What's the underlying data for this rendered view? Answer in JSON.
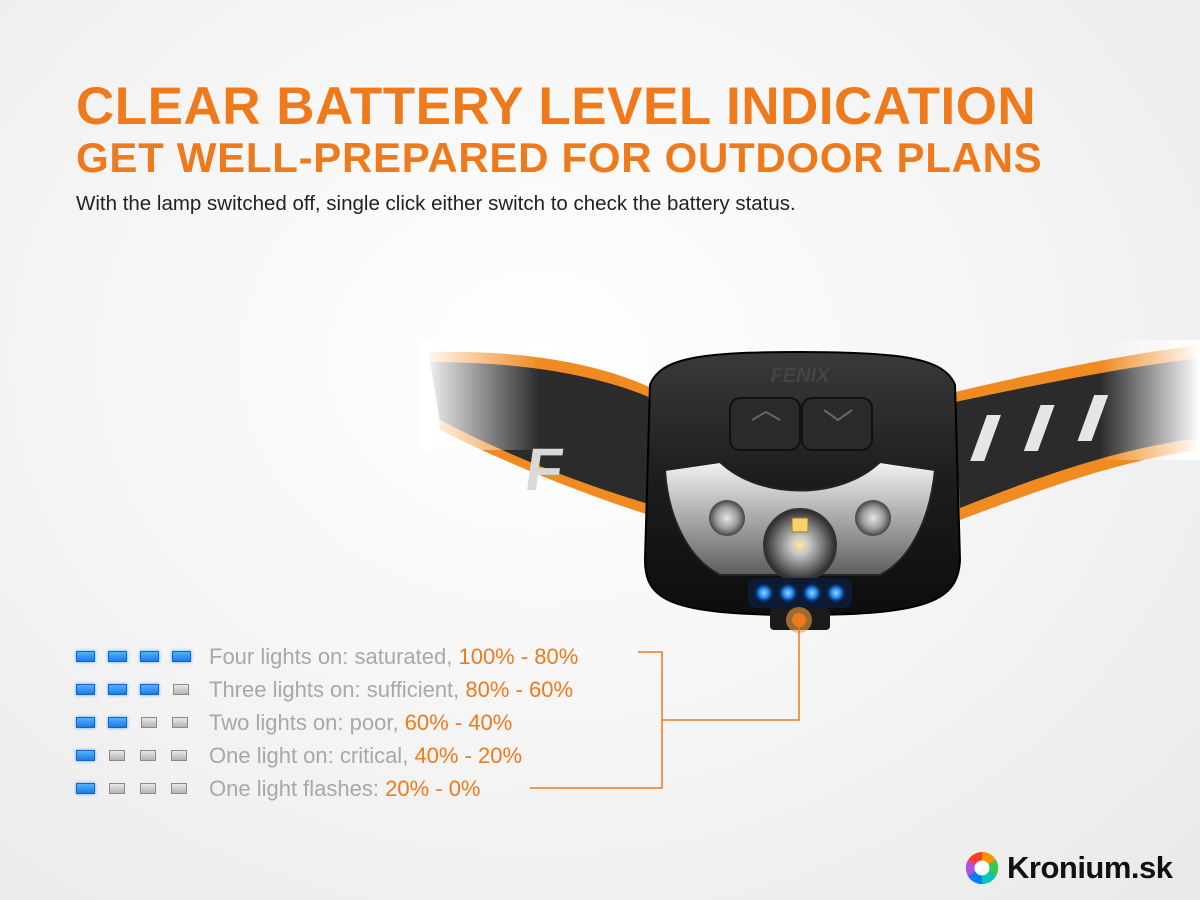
{
  "header": {
    "title_line1": "CLEAR BATTERY LEVEL INDICATION",
    "title_line2": "GET WELL-PREPARED FOR OUTDOOR PLANS",
    "subtitle": "With the lamp switched off, single click either switch to check the battery status."
  },
  "product": {
    "brand_mark": "FENIX",
    "strap_text": "F",
    "indicator_lights": 4
  },
  "legend": {
    "rows": [
      {
        "label": "Four lights on: saturated, ",
        "range": "100% - 80%",
        "lights_on": 4
      },
      {
        "label": "Three lights on: sufficient, ",
        "range": "80% - 60%",
        "lights_on": 3
      },
      {
        "label": "Two lights on: poor, ",
        "range": "60% - 40%",
        "lights_on": 2
      },
      {
        "label": "One light on: critical, ",
        "range": "40% - 20%",
        "lights_on": 1
      },
      {
        "label": "One light flashes: ",
        "range": "20% - 0%",
        "lights_on": 1
      }
    ]
  },
  "watermark": {
    "text": "Kronium.sk"
  },
  "colors": {
    "accent": "#ee7a1c",
    "indicator_blue": "#1e7be6",
    "legend_text": "#a8a8a8",
    "body_text": "#222222"
  }
}
